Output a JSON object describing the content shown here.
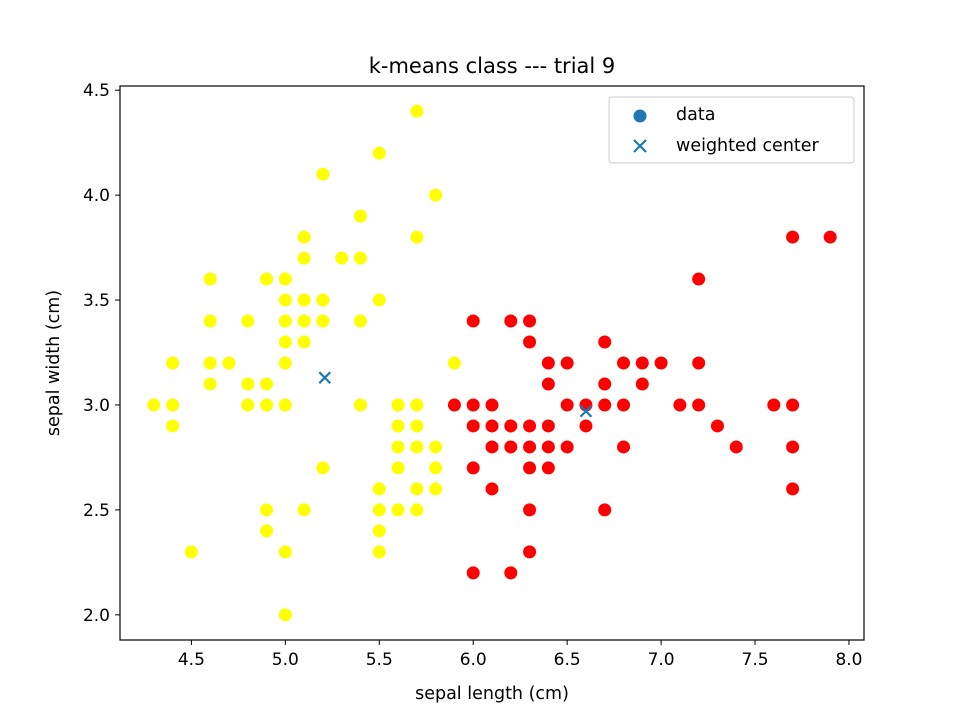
{
  "chart_data": {
    "type": "scatter",
    "title": "k-means class --- trial 9",
    "xlabel": "sepal length (cm)",
    "ylabel": "sepal width (cm)",
    "xlim": [
      4.12,
      8.08
    ],
    "ylim": [
      1.88,
      4.52
    ],
    "xticks": [
      4.5,
      5.0,
      5.5,
      6.0,
      6.5,
      7.0,
      7.5,
      8.0
    ],
    "xtick_labels": [
      "4.5",
      "5.0",
      "5.5",
      "6.0",
      "6.5",
      "7.0",
      "7.5",
      "8.0"
    ],
    "yticks": [
      2.0,
      2.5,
      3.0,
      3.5,
      4.0,
      4.5
    ],
    "ytick_labels": [
      "2.0",
      "2.5",
      "3.0",
      "3.5",
      "4.0",
      "4.5"
    ],
    "grid": false,
    "legend": {
      "placement": "top-right",
      "entries": [
        {
          "label": "data",
          "marker": "circle",
          "color": "#1f77b4"
        },
        {
          "label": "weighted center",
          "marker": "x",
          "color": "#1f77b4"
        }
      ]
    },
    "colors": {
      "cluster_a": "#ffff00",
      "cluster_b": "#ff0000",
      "center": "#1f77b4"
    },
    "series": [
      {
        "color": "#ffff00",
        "points": [
          [
            4.3,
            3.0
          ],
          [
            4.4,
            3.0
          ],
          [
            4.4,
            2.9
          ],
          [
            4.4,
            3.2
          ],
          [
            4.5,
            2.3
          ],
          [
            4.6,
            3.1
          ],
          [
            4.6,
            3.2
          ],
          [
            4.6,
            3.4
          ],
          [
            4.6,
            3.6
          ],
          [
            4.7,
            3.2
          ],
          [
            4.8,
            3.0
          ],
          [
            4.8,
            3.1
          ],
          [
            4.8,
            3.4
          ],
          [
            4.9,
            3.0
          ],
          [
            4.9,
            3.1
          ],
          [
            4.9,
            3.6
          ],
          [
            4.9,
            2.5
          ],
          [
            4.9,
            2.4
          ],
          [
            5.0,
            3.0
          ],
          [
            5.0,
            3.2
          ],
          [
            5.0,
            3.3
          ],
          [
            5.0,
            3.4
          ],
          [
            5.0,
            3.5
          ],
          [
            5.0,
            3.6
          ],
          [
            5.0,
            2.3
          ],
          [
            5.0,
            2.0
          ],
          [
            5.1,
            3.3
          ],
          [
            5.1,
            3.4
          ],
          [
            5.1,
            3.5
          ],
          [
            5.1,
            3.7
          ],
          [
            5.1,
            3.8
          ],
          [
            5.1,
            2.5
          ],
          [
            5.2,
            3.4
          ],
          [
            5.2,
            3.5
          ],
          [
            5.2,
            4.1
          ],
          [
            5.2,
            2.7
          ],
          [
            5.3,
            3.7
          ],
          [
            5.4,
            3.0
          ],
          [
            5.4,
            3.4
          ],
          [
            5.4,
            3.7
          ],
          [
            5.4,
            3.9
          ],
          [
            5.5,
            3.5
          ],
          [
            5.5,
            4.2
          ],
          [
            5.5,
            2.3
          ],
          [
            5.5,
            2.4
          ],
          [
            5.5,
            2.5
          ],
          [
            5.5,
            2.6
          ],
          [
            5.6,
            2.5
          ],
          [
            5.6,
            2.7
          ],
          [
            5.6,
            2.8
          ],
          [
            5.6,
            2.9
          ],
          [
            5.6,
            3.0
          ],
          [
            5.7,
            2.5
          ],
          [
            5.7,
            2.6
          ],
          [
            5.7,
            2.8
          ],
          [
            5.7,
            2.9
          ],
          [
            5.7,
            3.0
          ],
          [
            5.7,
            3.8
          ],
          [
            5.7,
            4.4
          ],
          [
            5.8,
            2.6
          ],
          [
            5.8,
            2.7
          ],
          [
            5.8,
            2.8
          ],
          [
            5.8,
            4.0
          ],
          [
            5.9,
            3.2
          ]
        ]
      },
      {
        "color": "#ff0000",
        "points": [
          [
            5.9,
            3.0
          ],
          [
            6.0,
            2.2
          ],
          [
            6.0,
            2.7
          ],
          [
            6.0,
            2.9
          ],
          [
            6.0,
            3.0
          ],
          [
            6.0,
            3.4
          ],
          [
            6.1,
            2.6
          ],
          [
            6.1,
            2.8
          ],
          [
            6.1,
            2.9
          ],
          [
            6.1,
            3.0
          ],
          [
            6.2,
            2.2
          ],
          [
            6.2,
            2.8
          ],
          [
            6.2,
            2.9
          ],
          [
            6.2,
            3.4
          ],
          [
            6.3,
            2.3
          ],
          [
            6.3,
            2.5
          ],
          [
            6.3,
            2.7
          ],
          [
            6.3,
            2.8
          ],
          [
            6.3,
            2.9
          ],
          [
            6.3,
            3.3
          ],
          [
            6.3,
            3.4
          ],
          [
            6.4,
            2.7
          ],
          [
            6.4,
            2.8
          ],
          [
            6.4,
            2.9
          ],
          [
            6.4,
            3.1
          ],
          [
            6.4,
            3.2
          ],
          [
            6.5,
            2.8
          ],
          [
            6.5,
            3.0
          ],
          [
            6.5,
            3.2
          ],
          [
            6.6,
            2.9
          ],
          [
            6.6,
            3.0
          ],
          [
            6.7,
            2.5
          ],
          [
            6.7,
            3.0
          ],
          [
            6.7,
            3.1
          ],
          [
            6.7,
            3.3
          ],
          [
            6.8,
            2.8
          ],
          [
            6.8,
            3.0
          ],
          [
            6.8,
            3.2
          ],
          [
            6.9,
            3.1
          ],
          [
            6.9,
            3.2
          ],
          [
            7.0,
            3.2
          ],
          [
            7.1,
            3.0
          ],
          [
            7.2,
            3.0
          ],
          [
            7.2,
            3.2
          ],
          [
            7.2,
            3.6
          ],
          [
            7.3,
            2.9
          ],
          [
            7.4,
            2.8
          ],
          [
            7.6,
            3.0
          ],
          [
            7.7,
            2.6
          ],
          [
            7.7,
            2.8
          ],
          [
            7.7,
            3.0
          ],
          [
            7.7,
            3.8
          ],
          [
            7.9,
            3.8
          ]
        ]
      }
    ],
    "centers": [
      [
        5.21,
        3.13
      ],
      [
        6.6,
        2.97
      ]
    ]
  }
}
